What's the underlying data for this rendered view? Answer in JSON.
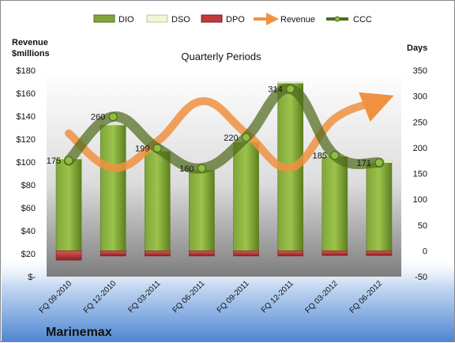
{
  "chart_data": {
    "type": "bar",
    "title": "Quarterly Periods",
    "company": "Marinemax",
    "left_axis_label": [
      "Revenue",
      "$millions"
    ],
    "right_axis_label": "Days",
    "categories": [
      "FQ 09-2010",
      "FQ 12-2010",
      "FQ 03-2011",
      "FQ 06-2011",
      "FQ 09-2011",
      "FQ 12-2011",
      "FQ 03-2012",
      "FQ 06-2012"
    ],
    "left_axis": {
      "min": 0,
      "max": 180,
      "step": 20,
      "tick_labels": [
        "$-",
        "$20",
        "$40",
        "$60",
        "$80",
        "$100",
        "$120",
        "$140",
        "$160",
        "$180"
      ]
    },
    "right_axis": {
      "min": -50,
      "max": 350,
      "step": 50,
      "tick_labels": [
        "-50",
        "0",
        "50",
        "100",
        "150",
        "200",
        "250",
        "300",
        "350"
      ]
    },
    "legend": [
      "DIO",
      "DSO",
      "DPO",
      "Revenue",
      "CCC"
    ],
    "legend_position": "top",
    "series": [
      {
        "name": "DIO",
        "axis": "right",
        "kind": "bar",
        "values": [
          178,
          244,
          193,
          157,
          211,
          325,
          183,
          171
        ]
      },
      {
        "name": "DSO",
        "axis": "right",
        "kind": "bar",
        "values": [
          4,
          3,
          4,
          3,
          4,
          3,
          4,
          4
        ]
      },
      {
        "name": "DPO",
        "axis": "right",
        "kind": "bar",
        "values": [
          -18,
          -10,
          -10,
          -10,
          -10,
          -10,
          -9,
          -9
        ]
      },
      {
        "name": "Revenue",
        "axis": "left",
        "kind": "line",
        "values": [
          125,
          95,
          118,
          153,
          125,
          95,
          138,
          153
        ]
      },
      {
        "name": "CCC",
        "axis": "right",
        "kind": "line",
        "values": [
          175,
          260,
          199,
          160,
          220,
          314,
          185,
          171
        ]
      }
    ],
    "ccc_labels": [
      "175",
      "260",
      "199",
      "160",
      "220",
      "314",
      "185",
      "171"
    ],
    "grid": false,
    "colors": {
      "dio": "#6b8e23",
      "dso": "#e9f5c9",
      "dpo": "#c0393b",
      "revenue": "#f0913f",
      "ccc": "#4f6b1d",
      "plot_top": "#ffffff",
      "plot_bottom": "#7d7d7d",
      "band_top": "#ffffff",
      "band_bottom": "#5b8fd6"
    }
  }
}
